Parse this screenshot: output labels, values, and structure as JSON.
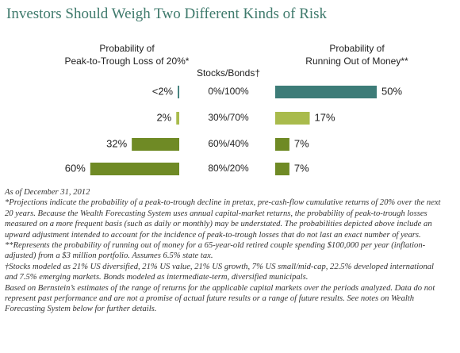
{
  "title": "Investors Should Weigh Two Different Kinds of Risk",
  "chart_data": [
    {
      "type": "bar",
      "direction": "left",
      "title": [
        "Probability of",
        "Peak-to-Trough Loss of 20%*"
      ],
      "categories_title": "Stocks/Bonds†",
      "categories": [
        "0%/100%",
        "30%/70%",
        "60%/40%",
        "80%/20%"
      ],
      "values": [
        1,
        2,
        32,
        60
      ],
      "value_labels": [
        "<2%",
        "2%",
        "32%",
        "60%"
      ],
      "colors": [
        "#3d7c78",
        "#a9bb4c",
        "#6f8a25",
        "#6f8a25"
      ]
    },
    {
      "type": "bar",
      "direction": "right",
      "title": [
        "Probability of",
        "Running Out of Money**"
      ],
      "values": [
        50,
        17,
        7,
        7
      ],
      "value_labels": [
        "50%",
        "17%",
        "7%",
        "7%"
      ],
      "colors": [
        "#3d7c78",
        "#a9bb4c",
        "#6f8a25",
        "#6f8a25"
      ]
    }
  ],
  "notes": [
    "As of December 31, 2012",
    "*Projections indicate the probability of a peak-to-trough decline in pretax, pre-cash-flow cumulative returns of 20% over the next 20 years. Because the Wealth Forecasting System uses annual capital-market returns, the probability of peak-to-trough losses measured on a more frequent basis (such as daily or monthly) may be understated. The probabilities depicted above include an upward adjustment intended to account for the incidence of peak-to-trough losses that do not last an exact number of years.",
    "**Represents the probability of running out of money for a 65-year-old retired couple spending $100,000 per year (inflation-adjusted) from a $3 million portfolio. Assumes 6.5% state tax.",
    "†Stocks modeled as 21% US diversified, 21% US value, 21% US growth, 7% US small/mid-cap, 22.5% developed international and 7.5% emerging markets. Bonds modeled as intermediate-term, diversified municipals.",
    "Based on Bernstein’s estimates of the range of returns for the applicable capital markets over the periods analyzed. Data do not represent past performance and are not a promise of actual future results or a range of future results. See notes on Wealth Forecasting System below for further details."
  ]
}
